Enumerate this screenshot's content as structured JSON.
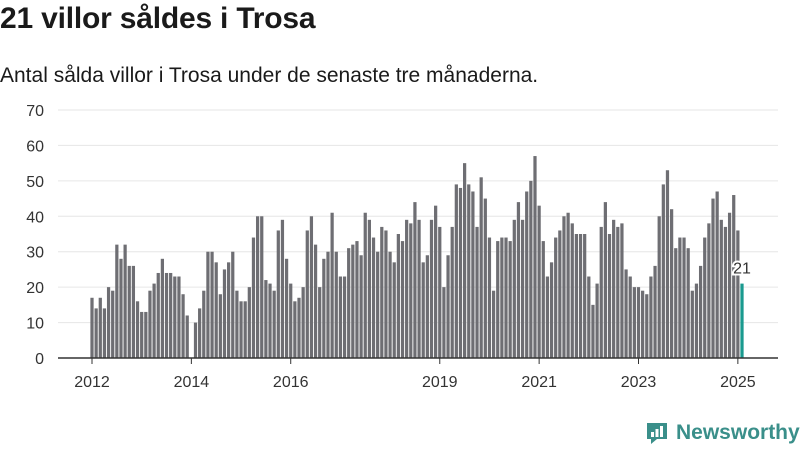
{
  "header": {
    "title": "21 villor såldes i Trosa",
    "subtitle": "Antal sålda villor i Trosa under de senaste tre månaderna."
  },
  "brand": {
    "name": "Newsworthy",
    "color": "#3a8f8a"
  },
  "chart_data": {
    "type": "bar",
    "title": "21 villor såldes i Trosa",
    "subtitle": "Antal sålda villor i Trosa under de senaste tre månaderna.",
    "ylim": [
      0,
      70
    ],
    "yticks": [
      0,
      10,
      20,
      30,
      40,
      50,
      60,
      70
    ],
    "xticks": [
      "2012",
      "2014",
      "2016",
      "2019",
      "2021",
      "2023",
      "2025"
    ],
    "grid": true,
    "bar_color": "#6e6e73",
    "highlight_color": "#1a9a8f",
    "highlight_label": "21",
    "values": [
      17,
      14,
      17,
      14,
      20,
      19,
      32,
      28,
      32,
      26,
      26,
      16,
      13,
      13,
      19,
      21,
      24,
      28,
      24,
      24,
      23,
      23,
      18,
      12,
      0,
      10,
      14,
      19,
      30,
      30,
      27,
      18,
      25,
      27,
      30,
      19,
      16,
      16,
      20,
      34,
      40,
      40,
      22,
      21,
      19,
      36,
      39,
      28,
      21,
      16,
      17,
      20,
      36,
      40,
      32,
      20,
      28,
      30,
      41,
      30,
      23,
      23,
      31,
      32,
      33,
      29,
      41,
      39,
      34,
      30,
      37,
      36,
      30,
      27,
      35,
      33,
      39,
      38,
      44,
      39,
      27,
      29,
      39,
      43,
      37,
      20,
      29,
      37,
      49,
      48,
      55,
      49,
      47,
      37,
      51,
      45,
      34,
      19,
      33,
      34,
      34,
      33,
      39,
      44,
      39,
      47,
      50,
      57,
      43,
      33,
      23,
      27,
      34,
      36,
      40,
      41,
      38,
      35,
      35,
      35,
      23,
      15,
      21,
      37,
      44,
      35,
      39,
      37,
      38,
      25,
      23,
      20,
      20,
      19,
      18,
      23,
      26,
      40,
      49,
      53,
      42,
      31,
      34,
      34,
      31,
      19,
      21,
      26,
      34,
      38,
      45,
      47,
      39,
      37,
      41,
      46,
      36,
      21
    ]
  }
}
